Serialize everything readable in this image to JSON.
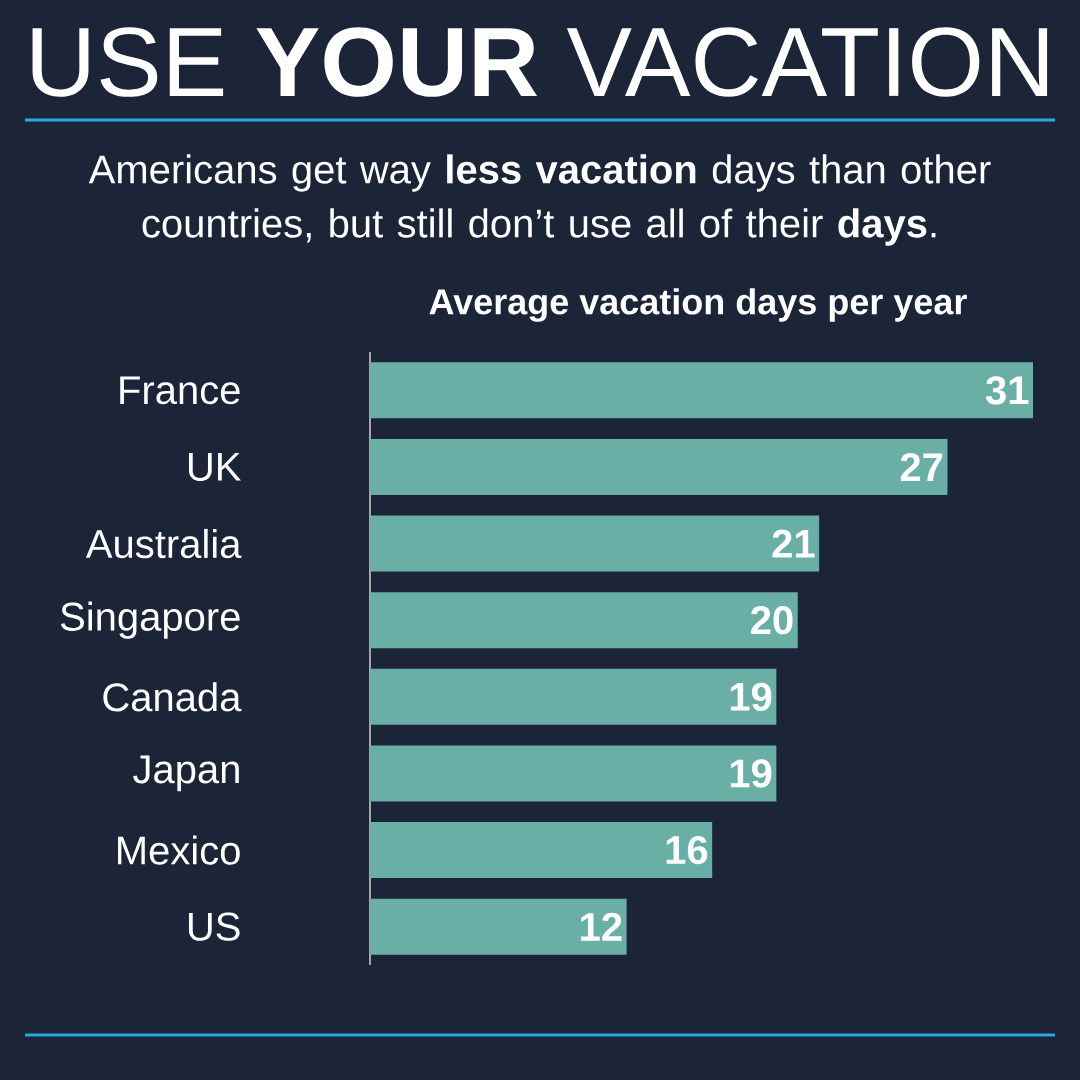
{
  "chart_data": {
    "type": "bar",
    "orientation": "horizontal",
    "title": "USE **YOUR** VACATION",
    "subtitle": "Americans get way **less vacation** days than other countries, but still don’t use all of their **days**.",
    "xlabel": "Average vacation days per year",
    "categories": [
      "France",
      "UK",
      "Australia",
      "Singapore",
      "Canada",
      "Japan",
      "Mexico",
      "US"
    ],
    "values": [
      31,
      27,
      21,
      20,
      19,
      19,
      16,
      12
    ],
    "color": "#6aafa6",
    "data_labels": true
  }
}
